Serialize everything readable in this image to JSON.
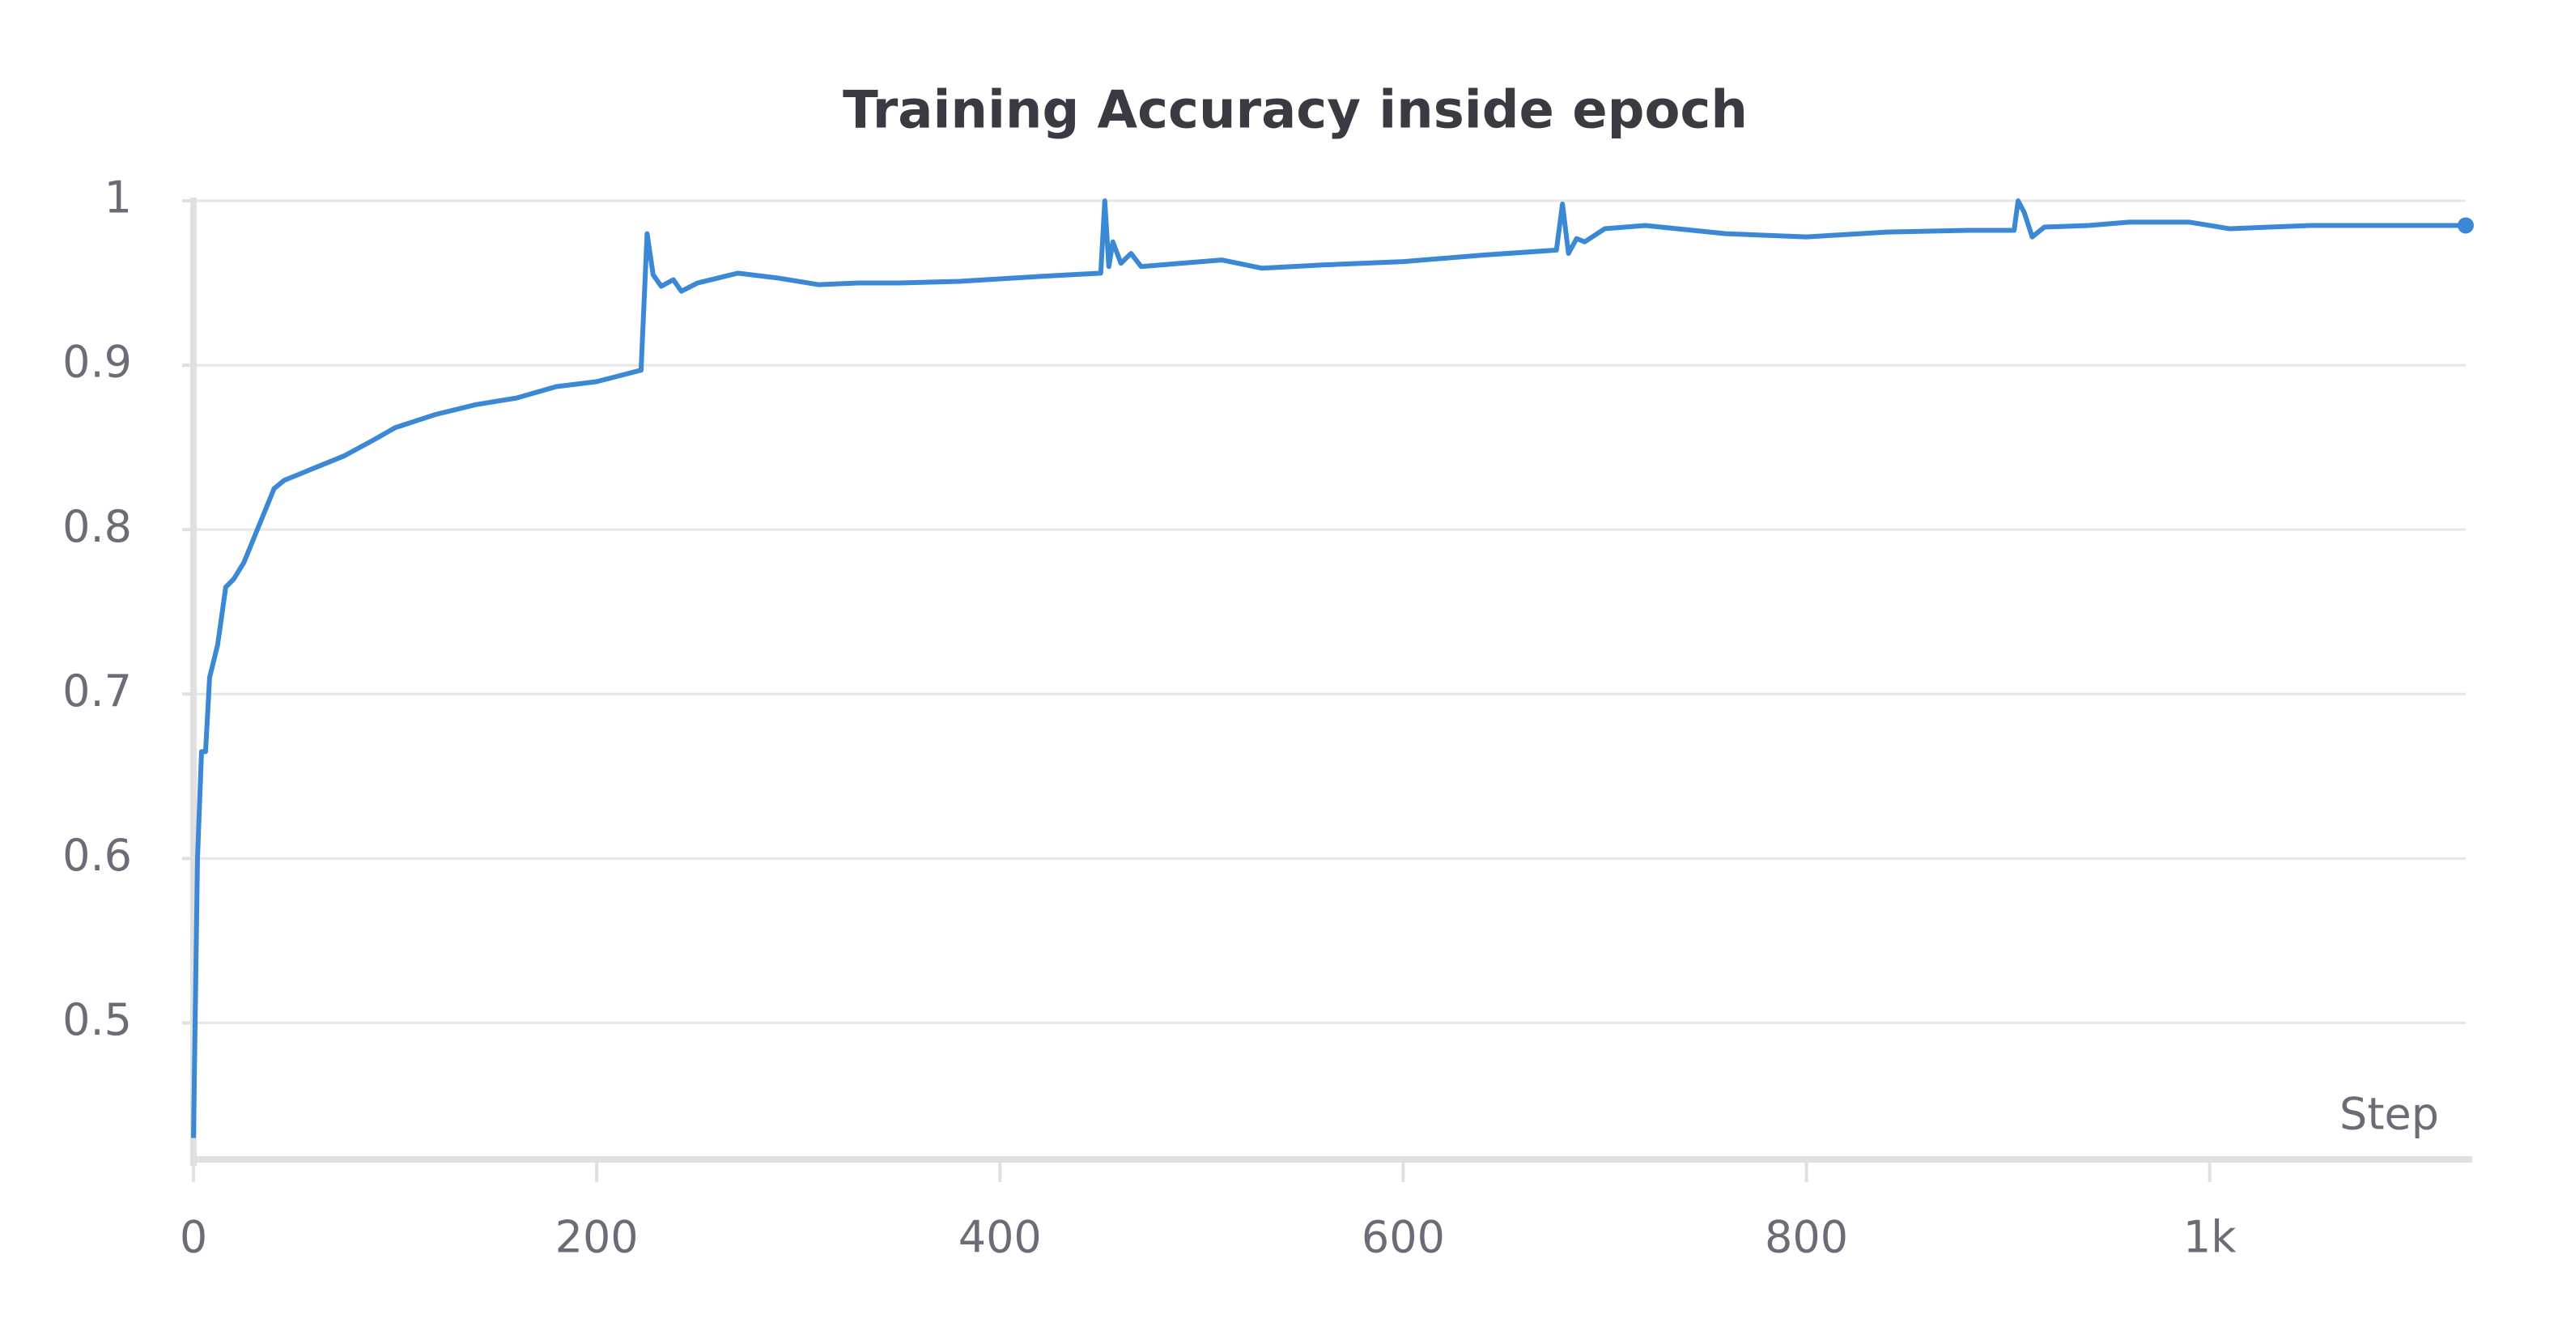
{
  "chart_data": {
    "type": "line",
    "title": "Training Accuracy inside epoch",
    "x_label": "Step",
    "xlim": [
      0,
      1127
    ],
    "ylim": [
      0.417,
      1.0
    ],
    "xticks": [
      0,
      200,
      400,
      600,
      800,
      {
        "value": 1000,
        "label": "1k"
      }
    ],
    "yticks": [
      0.5,
      0.6,
      0.7,
      0.8,
      0.9,
      1
    ],
    "grid": true,
    "series": [
      {
        "color": "#3b88d4",
        "x": [
          0,
          2,
          4,
          6,
          8,
          12,
          16,
          20,
          25,
          30,
          35,
          40,
          45,
          55,
          65,
          75,
          90,
          100,
          120,
          140,
          160,
          180,
          200,
          222,
          225,
          228,
          232,
          238,
          242,
          250,
          270,
          290,
          310,
          330,
          350,
          380,
          420,
          450,
          452,
          454,
          456,
          460,
          465,
          470,
          490,
          510,
          530,
          560,
          600,
          640,
          676,
          679,
          682,
          686,
          690,
          700,
          720,
          760,
          800,
          840,
          880,
          903,
          905,
          908,
          912,
          918,
          940,
          960,
          990,
          1000,
          1010,
          1050,
          1100,
          1127
        ],
        "values": [
          0.43,
          0.6,
          0.665,
          0.665,
          0.71,
          0.73,
          0.765,
          0.77,
          0.78,
          0.795,
          0.81,
          0.825,
          0.83,
          0.835,
          0.84,
          0.845,
          0.855,
          0.862,
          0.87,
          0.876,
          0.88,
          0.887,
          0.89,
          0.897,
          0.98,
          0.955,
          0.948,
          0.952,
          0.945,
          0.95,
          0.956,
          0.953,
          0.949,
          0.95,
          0.95,
          0.951,
          0.954,
          0.956,
          1.0,
          0.96,
          0.975,
          0.962,
          0.968,
          0.96,
          0.962,
          0.964,
          0.959,
          0.961,
          0.963,
          0.967,
          0.97,
          0.998,
          0.968,
          0.977,
          0.975,
          0.983,
          0.985,
          0.98,
          0.978,
          0.981,
          0.982,
          0.982,
          1.0,
          0.993,
          0.978,
          0.984,
          0.985,
          0.987,
          0.987,
          0.985,
          0.983,
          0.985,
          0.985,
          0.985
        ]
      }
    ]
  }
}
